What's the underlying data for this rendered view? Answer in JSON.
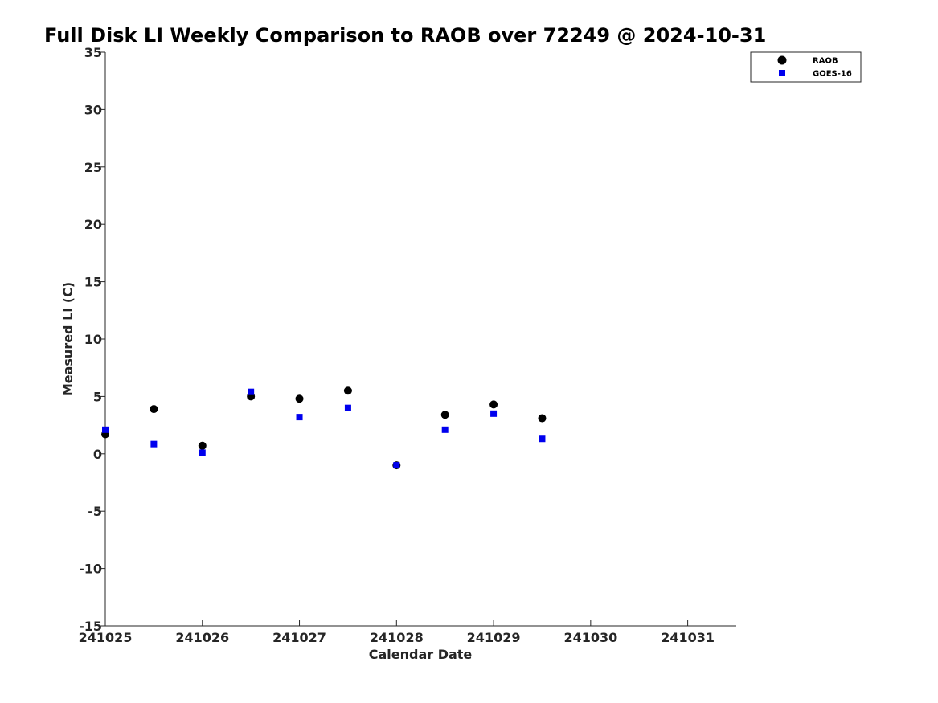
{
  "chart_data": {
    "type": "scatter",
    "title": "Full Disk LI Weekly Comparison to RAOB over 72249 @ 2024-10-31",
    "xlabel": "Calendar Date",
    "ylabel": "Measured LI (C)",
    "xlim": [
      "2024-10-25T00:00",
      "2024-10-31T12:00"
    ],
    "ylim": [
      -15,
      35
    ],
    "x_ticks": [
      {
        "value": "2024-10-25",
        "label": "241025"
      },
      {
        "value": "2024-10-26",
        "label": "241026"
      },
      {
        "value": "2024-10-27",
        "label": "241027"
      },
      {
        "value": "2024-10-28",
        "label": "241028"
      },
      {
        "value": "2024-10-29",
        "label": "241029"
      },
      {
        "value": "2024-10-30",
        "label": "241030"
      },
      {
        "value": "2024-10-31",
        "label": "241031"
      }
    ],
    "y_ticks": [
      35,
      30,
      25,
      20,
      15,
      10,
      5,
      0,
      -5,
      -10,
      -15
    ],
    "grid": false,
    "legend_position": "top-right",
    "series": [
      {
        "name": "RAOB",
        "marker": "circle",
        "color": "#000000",
        "x": [
          "2024-10-25T00:00",
          "2024-10-25T12:00",
          "2024-10-26T00:00",
          "2024-10-26T12:00",
          "2024-10-27T00:00",
          "2024-10-27T12:00",
          "2024-10-28T00:00",
          "2024-10-28T12:00",
          "2024-10-29T00:00",
          "2024-10-29T12:00"
        ],
        "y": [
          1.7,
          3.9,
          0.7,
          5.0,
          4.8,
          5.5,
          -1.0,
          3.4,
          4.3,
          3.1
        ]
      },
      {
        "name": "GOES-16",
        "marker": "square",
        "color": "#0000ee",
        "x": [
          "2024-10-25T00:00",
          "2024-10-25T12:00",
          "2024-10-26T00:00",
          "2024-10-26T12:00",
          "2024-10-27T00:00",
          "2024-10-27T12:00",
          "2024-10-28T00:00",
          "2024-10-28T12:00",
          "2024-10-29T00:00",
          "2024-10-29T12:00"
        ],
        "y": [
          2.1,
          0.85,
          0.1,
          5.4,
          3.2,
          4.0,
          -1.0,
          2.1,
          3.5,
          1.3
        ]
      }
    ]
  }
}
